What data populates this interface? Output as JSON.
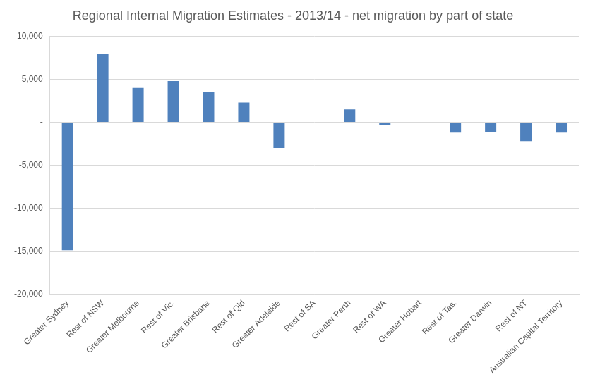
{
  "chart_data": {
    "type": "bar",
    "title": "Regional Internal Migration Estimates - 2013/14 - net migration by part of state",
    "categories": [
      "Greater Sydney",
      "Rest of NSW",
      "Greater Melbourne",
      "Rest of Vic.",
      "Greater Brisbane",
      "Rest of Qld",
      "Greater Adelaide",
      "Rest of SA",
      "Greater Perth",
      "Rest of WA",
      "Greater Hobart",
      "Rest of Tas.",
      "Greater Darwin",
      "Rest of NT",
      "Australian Capital Territory"
    ],
    "values": [
      -14900,
      8000,
      4000,
      4800,
      3500,
      2300,
      -3000,
      0,
      1500,
      -300,
      0,
      -1200,
      -1100,
      -2200,
      -1200
    ],
    "color": "#4f81bd",
    "ylim": [
      -20000,
      10000
    ],
    "yticks": [
      {
        "value": -20000,
        "label": "-20,000"
      },
      {
        "value": -15000,
        "label": "-15,000"
      },
      {
        "value": -10000,
        "label": "-10,000"
      },
      {
        "value": -5000,
        "label": "-5,000"
      },
      {
        "value": 0,
        "label": "-"
      },
      {
        "value": 5000,
        "label": "5,000"
      },
      {
        "value": 10000,
        "label": "10,000"
      }
    ],
    "grid": true
  }
}
